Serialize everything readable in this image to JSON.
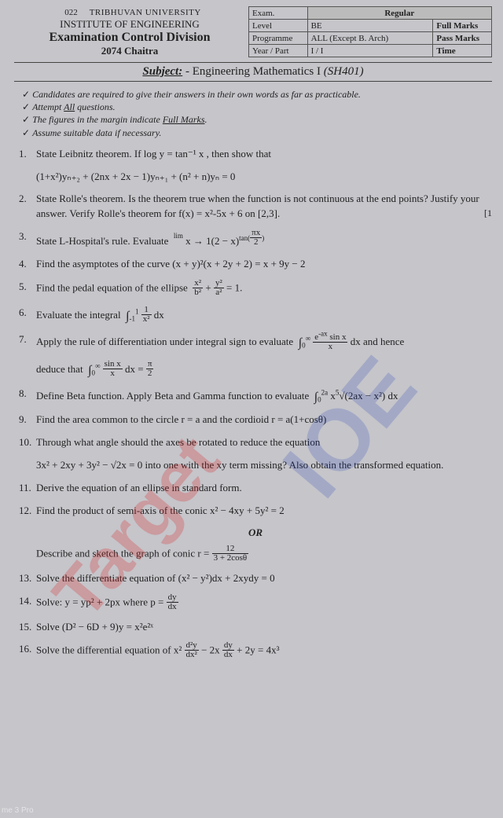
{
  "header": {
    "code": "022",
    "university": "TRIBHUVAN UNIVERSITY",
    "institute": "INSTITUTE OF ENGINEERING",
    "division": "Examination Control Division",
    "session": "2074 Chaitra"
  },
  "info": {
    "r1c1": "Exam.",
    "r1c2": "",
    "r1c3": "Regular",
    "r2c1": "Level",
    "r2c2": "BE",
    "r2c3": "Full Marks",
    "r3c1": "Programme",
    "r3c2": "ALL (Except B. Arch)",
    "r3c3": "Pass Marks",
    "r4c1": "Year / Part",
    "r4c2": "I / I",
    "r4c3": "Time"
  },
  "subject": {
    "label": "Subject:",
    "name": "- Engineering Mathematics I",
    "code": "(SH401)"
  },
  "instructions": {
    "i1": "Candidates are required to give their answers in their own words as far as practicable.",
    "i2_pre": "Attempt ",
    "i2_u": "All",
    "i2_post": " questions.",
    "i3_pre": "The figures in the margin indicate ",
    "i3_u": "Full Marks",
    "i3_post": ".",
    "i4": "Assume suitable data if necessary."
  },
  "q": {
    "q1a": "State Leibnitz theorem. If log y = tan⁻¹ x , then show that",
    "q1b": "(1+x²)yₙ₊₂ + (2nx + 2x − 1)yₙ₊₁ + (n² + n)yₙ = 0",
    "q2": "State Rolle's theorem. Is the theorem true when the function is not continuous at the end points? Justify your answer. Verify Rolle's theorem for f(x) = x²-5x + 6 on [2,3].",
    "q3": "State L-Hospital's rule. Evaluate",
    "q4": "Find the asymptotes of the curve (x + y)²(x + 2y + 2) = x + 9y − 2",
    "q5": "Find the pedal equation of the ellipse",
    "q6": "Evaluate the integral",
    "q7a": "Apply the rule of differentiation under integral sign to evaluate",
    "q7b": "and hence",
    "q7c": "deduce that",
    "q8": "Define Beta function. Apply Beta and Gamma function to evaluate",
    "q9": "Find the area common to the circle r = a and the cordioid r = a(1+cosθ)",
    "q10a": "Through what angle should the axes be rotated to reduce the equation",
    "q10b": "3x² + 2xy + 3y² − √2x = 0   into one with the xy term missing? Also obtain the transformed equation.",
    "q11": "Derive the equation of an ellipse in standard form.",
    "q12": "Find the product of semi-axis of the conic x² − 4xy + 5y² = 2",
    "or": "OR",
    "q12b": "Describe and sketch the graph of conic r =",
    "q13": "Solve the differentiate equation of (x² − y²)dx + 2xydy = 0",
    "q14": "Solve: y = yp² + 2px where p =",
    "q15": "Solve (D² − 6D + 9)y = x²e²ˣ",
    "q16": "Solve the differential equation of x²"
  },
  "watermark": {
    "w1": "Target",
    "w2": "IOE"
  },
  "phone": "me 3 Pro"
}
